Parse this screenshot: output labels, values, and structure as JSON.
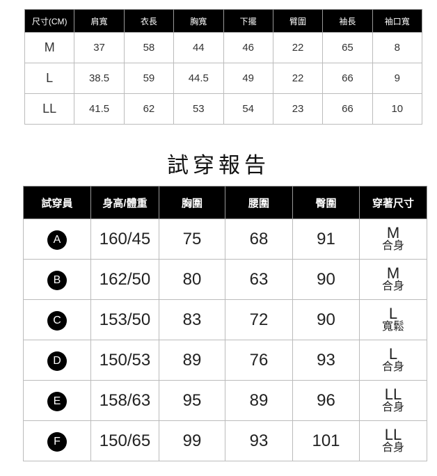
{
  "size_table": {
    "headers": [
      "尺寸(CM)",
      "肩寬",
      "衣長",
      "胸寬",
      "下擺",
      "臂圍",
      "袖長",
      "袖口寬"
    ],
    "rows": [
      [
        "M",
        "37",
        "58",
        "44",
        "46",
        "22",
        "65",
        "8"
      ],
      [
        "L",
        "38.5",
        "59",
        "44.5",
        "49",
        "22",
        "66",
        "9"
      ],
      [
        "LL",
        "41.5",
        "62",
        "53",
        "54",
        "23",
        "66",
        "10"
      ]
    ]
  },
  "title": "試穿報告",
  "fit_table": {
    "headers": [
      "試穿員",
      "身高/體重",
      "胸圍",
      "腰圍",
      "臀圍",
      "穿著尺寸"
    ],
    "rows": [
      {
        "id": "A",
        "hw": "160/45",
        "chest": "75",
        "waist": "68",
        "hip": "91",
        "size": "M",
        "fit": "合身"
      },
      {
        "id": "B",
        "hw": "162/50",
        "chest": "80",
        "waist": "63",
        "hip": "90",
        "size": "M",
        "fit": "合身"
      },
      {
        "id": "C",
        "hw": "153/50",
        "chest": "83",
        "waist": "72",
        "hip": "90",
        "size": "L",
        "fit": "寬鬆"
      },
      {
        "id": "D",
        "hw": "150/53",
        "chest": "89",
        "waist": "76",
        "hip": "93",
        "size": "L",
        "fit": "合身"
      },
      {
        "id": "E",
        "hw": "158/63",
        "chest": "95",
        "waist": "89",
        "hip": "96",
        "size": "LL",
        "fit": "合身"
      },
      {
        "id": "F",
        "hw": "150/65",
        "chest": "99",
        "waist": "93",
        "hip": "101",
        "size": "LL",
        "fit": "合身"
      }
    ]
  }
}
